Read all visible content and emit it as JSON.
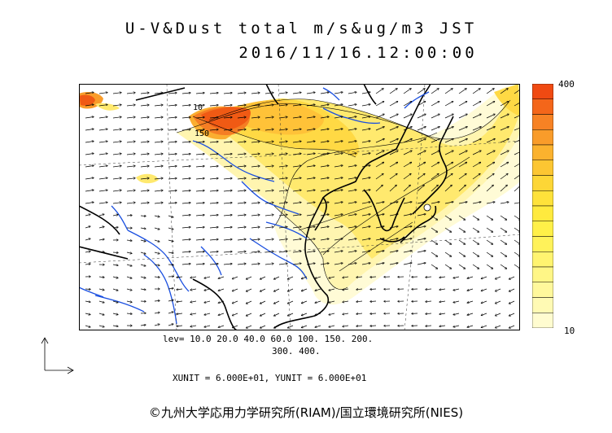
{
  "header": {
    "title_line1": "U-V&Dust total m/s&ug/m3 JST",
    "title_line2": "2016/11/16.12:00:00"
  },
  "map": {
    "contour_label_1": "10",
    "contour_label_2": "150",
    "colors": {
      "coastline": "#000000",
      "rivers": "#1a4fe0",
      "high_dust": "#f05a14",
      "low_dust": "#fffce0",
      "mid_dust": "#ffe840"
    }
  },
  "colorbar": {
    "max_label": "400",
    "min_label": "10",
    "colors": [
      "#f04a12",
      "#f4661a",
      "#f78224",
      "#f99c2a",
      "#fbb22e",
      "#fcc632",
      "#fdd636",
      "#fee23a",
      "#ffea3e",
      "#fff048",
      "#fff25a",
      "#fff470",
      "#fff686",
      "#fff89c",
      "#fffab4",
      "#fffcd0"
    ]
  },
  "legend": {
    "levels_line1": "lev= 10.0 20.0 40.0 60.0 100. 150. 200.",
    "levels_line2": "300. 400.",
    "units_line": "XUNIT = 6.000E+01, YUNIT = 6.000E+01"
  },
  "footer": {
    "copyright": "©九州大学応用力学研究所(RIAM)/国立環境研究所(NIES)"
  }
}
